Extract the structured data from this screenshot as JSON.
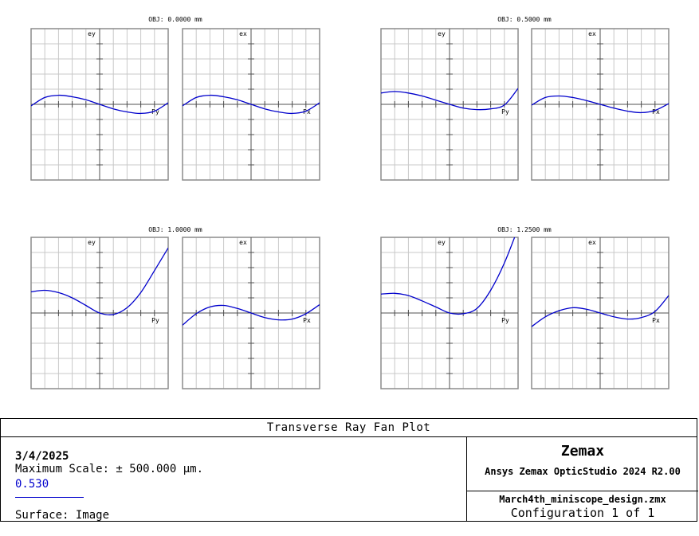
{
  "chart_data": {
    "type": "line",
    "title": "Transverse Ray Fan Plot",
    "xlim": [
      -1,
      1
    ],
    "ylim": [
      -500,
      500
    ],
    "grid": true,
    "series": [
      {
        "name": "0.530",
        "color": "#0000cc"
      }
    ],
    "fields": [
      {
        "label": "OBJ: 0.0000 mm",
        "tangential": {
          "ylabel": "ey",
          "xlabel": "Py",
          "x": [
            -1,
            -0.8,
            -0.6,
            -0.4,
            -0.2,
            0,
            0.2,
            0.4,
            0.6,
            0.8,
            1
          ],
          "y": [
            -10,
            45,
            60,
            50,
            30,
            0,
            -30,
            -50,
            -60,
            -45,
            10
          ]
        },
        "sagittal": {
          "ylabel": "ex",
          "xlabel": "Px",
          "x": [
            -1,
            -0.8,
            -0.6,
            -0.4,
            -0.2,
            0,
            0.2,
            0.4,
            0.6,
            0.8,
            1
          ],
          "y": [
            -10,
            45,
            60,
            50,
            30,
            0,
            -30,
            -50,
            -60,
            -45,
            10
          ]
        }
      },
      {
        "label": "OBJ: 0.5000 mm",
        "tangential": {
          "ylabel": "ey",
          "xlabel": "Py",
          "x": [
            -1,
            -0.8,
            -0.6,
            -0.4,
            -0.2,
            0,
            0.2,
            0.4,
            0.6,
            0.8,
            1
          ],
          "y": [
            75,
            85,
            75,
            55,
            28,
            0,
            -25,
            -35,
            -30,
            -5,
            105
          ]
        },
        "sagittal": {
          "ylabel": "ex",
          "xlabel": "Px",
          "x": [
            -1,
            -0.8,
            -0.6,
            -0.4,
            -0.2,
            0,
            0.2,
            0.4,
            0.6,
            0.8,
            1
          ],
          "y": [
            -5,
            45,
            55,
            45,
            25,
            0,
            -25,
            -45,
            -55,
            -40,
            5
          ]
        }
      },
      {
        "label": "OBJ: 1.0000 mm",
        "tangential": {
          "ylabel": "ey",
          "xlabel": "Py",
          "x": [
            -1,
            -0.8,
            -0.6,
            -0.4,
            -0.2,
            0,
            0.2,
            0.4,
            0.6,
            0.8,
            1
          ],
          "y": [
            140,
            150,
            135,
            100,
            50,
            0,
            -10,
            35,
            135,
            280,
            430
          ]
        },
        "sagittal": {
          "ylabel": "ex",
          "xlabel": "Px",
          "x": [
            -1,
            -0.8,
            -0.6,
            -0.4,
            -0.2,
            0,
            0.2,
            0.4,
            0.6,
            0.8,
            1
          ],
          "y": [
            -80,
            -5,
            40,
            50,
            30,
            0,
            -30,
            -45,
            -40,
            -5,
            55
          ]
        }
      },
      {
        "label": "OBJ: 1.2500 mm",
        "tangential": {
          "ylabel": "ey",
          "xlabel": "Py",
          "x": [
            -1,
            -0.8,
            -0.6,
            -0.4,
            -0.2,
            0,
            0.2,
            0.4,
            0.6,
            0.8,
            1
          ],
          "y": [
            125,
            130,
            115,
            80,
            40,
            0,
            -5,
            30,
            150,
            330,
            560
          ]
        },
        "sagittal": {
          "ylabel": "ex",
          "xlabel": "Px",
          "x": [
            -1,
            -0.8,
            -0.6,
            -0.4,
            -0.2,
            0,
            0.2,
            0.4,
            0.6,
            0.8,
            1
          ],
          "y": [
            -90,
            -25,
            15,
            35,
            25,
            0,
            -25,
            -40,
            -30,
            10,
            115
          ]
        }
      }
    ]
  },
  "footer": {
    "title": "Transverse Ray Fan Plot",
    "date": "3/4/2025",
    "max_scale": "Maximum Scale: ± 500.000 µm.",
    "wavelength": "0.530",
    "surface": "Surface: Image",
    "brand": "Zemax",
    "product": "Ansys Zemax OpticStudio 2024 R2.00",
    "filename": "March4th_miniscope_design.zmx",
    "configuration": "Configuration 1 of 1"
  }
}
